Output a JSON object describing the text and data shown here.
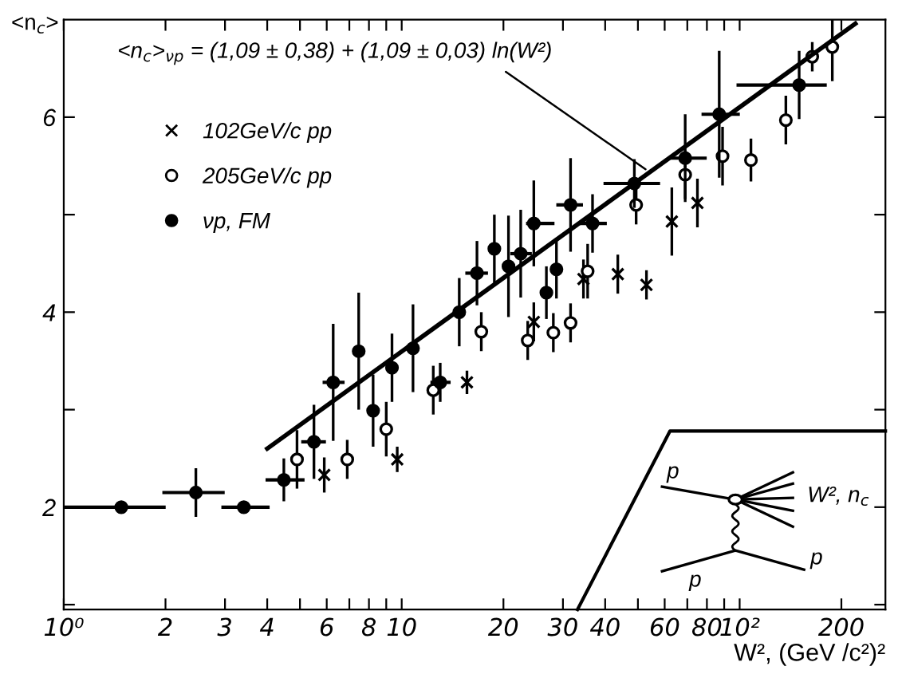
{
  "chart_data": {
    "type": "scatter",
    "xlabel": "W², (GeV /c²)²",
    "ylabel": "<n$_{c}$>",
    "log": "x",
    "xlim": [
      1,
      270
    ],
    "ylim": [
      0.95,
      7.0
    ],
    "xticks": [
      {
        "value": 1,
        "label": "10⁰"
      },
      2,
      3,
      4,
      {
        "value": 5,
        "label": null
      },
      6,
      {
        "value": 7,
        "label": null
      },
      8,
      {
        "value": 9,
        "label": null
      },
      10,
      20,
      30,
      40,
      {
        "value": 50,
        "label": null
      },
      60,
      {
        "value": 70,
        "label": null
      },
      80,
      {
        "value": 90,
        "label": null
      },
      {
        "value": 100,
        "label": "10²"
      },
      200
    ],
    "yticks": [
      {
        "value": 1,
        "label": null
      },
      2,
      {
        "value": 3,
        "label": null
      },
      4,
      {
        "value": 5,
        "label": null
      },
      6
    ],
    "legend": "top left",
    "grid": false,
    "annotations": [
      {
        "text": "<n$_{c}$>$_{νp}$ = (1,09 ± 0,38) + (1,09 ± 0,03) ln(W²)",
        "x": 54,
        "y": 5.44
      },
      "p",
      "p",
      "p",
      "W², n$_{c}$"
    ],
    "series": [
      {
        "name": "102GeV/c pp",
        "color": "#000000",
        "marker": "cross",
        "x": [
          5.9,
          9.7,
          15.6,
          24.6,
          34.5,
          43.6,
          53,
          63,
          75
        ],
        "values": [
          2.33,
          2.49,
          3.28,
          3.9,
          4.34,
          4.39,
          4.28,
          4.93,
          5.12
        ],
        "errors": [
          0.18,
          0.13,
          0.12,
          0.2,
          0.2,
          0.2,
          0.15,
          0.35,
          0.25
        ]
      },
      {
        "name": "205GeV/c pp",
        "color": "#000000",
        "marker": "circle",
        "x": [
          4.9,
          6.9,
          9.0,
          12.4,
          17.2,
          23.6,
          28.1,
          31.6,
          35.5,
          49.4,
          69,
          89,
          108,
          137,
          164,
          188
        ],
        "values": [
          2.49,
          2.49,
          2.8,
          3.2,
          3.8,
          3.71,
          3.79,
          3.89,
          4.42,
          5.1,
          5.41,
          5.6,
          5.56,
          5.97,
          6.62,
          6.72
        ],
        "errors": [
          0.3,
          0.2,
          0.28,
          0.25,
          0.2,
          0.2,
          0.2,
          0.2,
          0.28,
          0.2,
          0.25,
          0.3,
          0.22,
          0.25,
          0.15,
          0.35
        ]
      },
      {
        "name": "νp, FM",
        "color": "#000000",
        "marker": "circle",
        "x": [
          1.48,
          2.46,
          3.41,
          4.48,
          5.5,
          6.27,
          7.46,
          8.23,
          9.36,
          10.8,
          13.0,
          14.8,
          16.7,
          18.8,
          20.7,
          22.5,
          24.6,
          26.8,
          28.7,
          31.6,
          36.7,
          48.8,
          69,
          87,
          150
        ],
        "values": [
          2.0,
          2.15,
          2.0,
          2.28,
          2.67,
          3.28,
          3.6,
          2.99,
          3.43,
          3.63,
          3.28,
          4.0,
          4.4,
          4.65,
          4.47,
          4.6,
          4.91,
          4.2,
          4.44,
          5.1,
          4.91,
          5.32,
          5.58,
          6.03,
          6.33
        ],
        "errors": [
          null,
          0.25,
          null,
          0.22,
          0.38,
          0.6,
          0.6,
          0.37,
          0.35,
          0.45,
          0.2,
          0.35,
          0.33,
          0.35,
          0.52,
          0.45,
          0.44,
          0.27,
          0.3,
          0.48,
          0.3,
          0.25,
          0.45,
          0.65,
          0.35
        ],
        "xerrors": [
          [
            1.0,
            1.98
          ],
          [
            1.98,
            2.96
          ],
          [
            2.96,
            4.02
          ],
          [
            4.0,
            5.1
          ],
          [
            5.1,
            5.9
          ],
          [
            5.9,
            6.7
          ],
          null,
          null,
          null,
          null,
          [
            12.3,
            13.8
          ],
          null,
          [
            15.6,
            17.8
          ],
          null,
          null,
          [
            21.2,
            24.0
          ],
          [
            23.6,
            28.0
          ],
          null,
          null,
          [
            29.0,
            34.0
          ],
          [
            33.5,
            40.0
          ],
          [
            40,
            57.5
          ],
          [
            62,
            79
          ],
          [
            78,
            99
          ],
          [
            99,
            179
          ]
        ]
      },
      {
        "type": "line",
        "color": "#000000",
        "x": [
          4,
          220
        ],
        "values": [
          2.6,
          6.96
        ]
      }
    ]
  }
}
